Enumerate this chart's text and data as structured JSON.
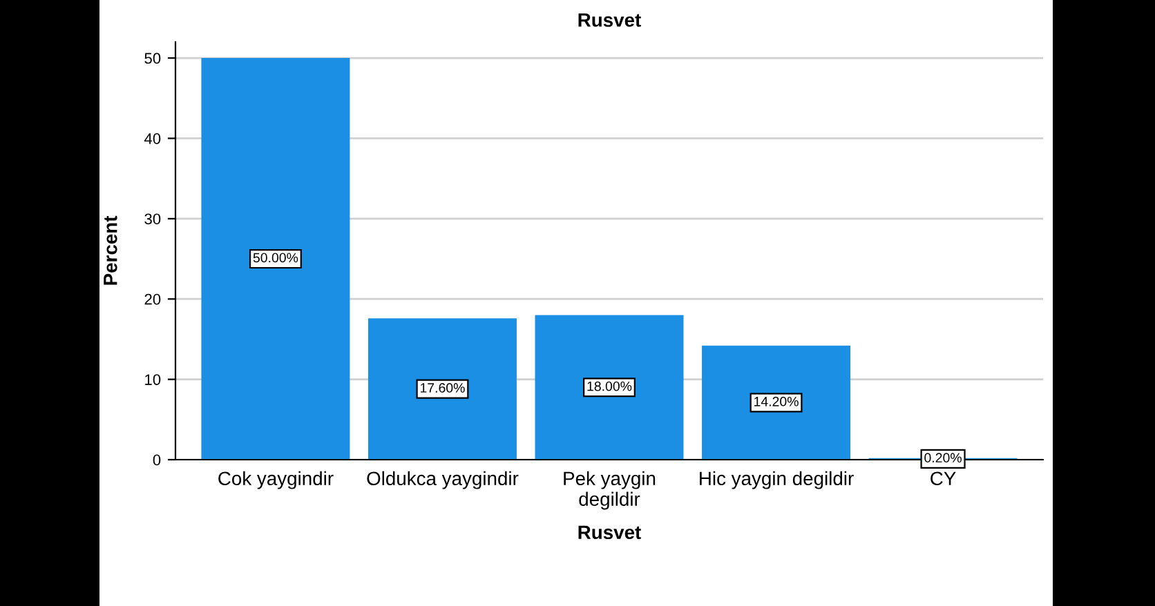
{
  "chart_data": {
    "type": "bar",
    "title": "Rusvet",
    "xlabel": "Rusvet",
    "ylabel": "Percent",
    "categories": [
      "Cok yaygindir",
      "Oldukca yaygindir",
      "Pek yaygin\ndegildir",
      "Hic yaygin degildir",
      "CY"
    ],
    "values": [
      50.0,
      17.6,
      18.0,
      14.2,
      0.2
    ],
    "value_labels": [
      "50.00%",
      "17.60%",
      "18.00%",
      "14.20%",
      "0.20%"
    ],
    "color": "#1a8fe3",
    "ylim": [
      0,
      52
    ],
    "yticks": [
      0,
      10,
      20,
      30,
      40,
      50
    ],
    "grid": "y",
    "legend": false
  }
}
